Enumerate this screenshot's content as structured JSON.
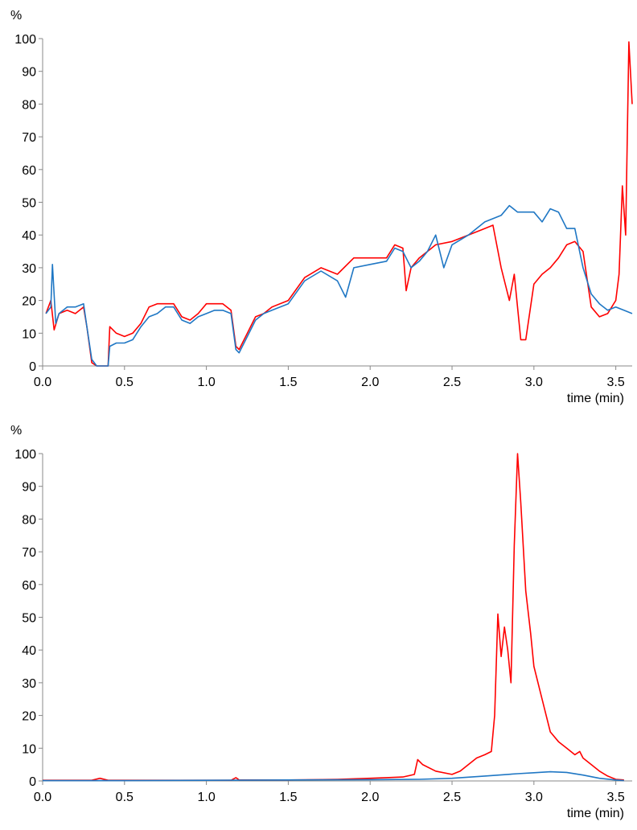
{
  "chart_data": [
    {
      "type": "line",
      "ylabel": "%",
      "xlabel": "time (min)",
      "xlim": [
        0,
        3.6
      ],
      "ylim": [
        0,
        100
      ],
      "x_ticks": [
        "0.0",
        "0.5",
        "1.0",
        "1.5",
        "2.0",
        "2.5",
        "3.0",
        "3.5"
      ],
      "y_ticks": [
        "0",
        "10",
        "20",
        "30",
        "40",
        "50",
        "60",
        "70",
        "80",
        "90",
        "100"
      ],
      "grid": false,
      "colors": [
        "#ff0000",
        "#1f77c4"
      ],
      "series": [
        {
          "points": [
            [
              0.02,
              16
            ],
            [
              0.05,
              20
            ],
            [
              0.07,
              11
            ],
            [
              0.1,
              16
            ],
            [
              0.15,
              17
            ],
            [
              0.2,
              16
            ],
            [
              0.25,
              18
            ],
            [
              0.27,
              12
            ],
            [
              0.3,
              1
            ],
            [
              0.33,
              0
            ],
            [
              0.4,
              0
            ],
            [
              0.41,
              12
            ],
            [
              0.45,
              10
            ],
            [
              0.5,
              9
            ],
            [
              0.55,
              10
            ],
            [
              0.6,
              13
            ],
            [
              0.65,
              18
            ],
            [
              0.7,
              19
            ],
            [
              0.75,
              19
            ],
            [
              0.8,
              19
            ],
            [
              0.85,
              15
            ],
            [
              0.9,
              14
            ],
            [
              0.95,
              16
            ],
            [
              1.0,
              19
            ],
            [
              1.05,
              19
            ],
            [
              1.1,
              19
            ],
            [
              1.15,
              17
            ],
            [
              1.18,
              6
            ],
            [
              1.2,
              5
            ],
            [
              1.25,
              10
            ],
            [
              1.3,
              15
            ],
            [
              1.35,
              16
            ],
            [
              1.4,
              18
            ],
            [
              1.5,
              20
            ],
            [
              1.6,
              27
            ],
            [
              1.7,
              30
            ],
            [
              1.8,
              28
            ],
            [
              1.9,
              33
            ],
            [
              2.0,
              33
            ],
            [
              2.1,
              33
            ],
            [
              2.15,
              37
            ],
            [
              2.2,
              36
            ],
            [
              2.22,
              23
            ],
            [
              2.25,
              30
            ],
            [
              2.3,
              33
            ],
            [
              2.35,
              35
            ],
            [
              2.4,
              37
            ],
            [
              2.5,
              38
            ],
            [
              2.6,
              40
            ],
            [
              2.7,
              42
            ],
            [
              2.75,
              43
            ],
            [
              2.8,
              30
            ],
            [
              2.85,
              20
            ],
            [
              2.88,
              28
            ],
            [
              2.92,
              8
            ],
            [
              2.95,
              8
            ],
            [
              3.0,
              25
            ],
            [
              3.05,
              28
            ],
            [
              3.1,
              30
            ],
            [
              3.15,
              33
            ],
            [
              3.2,
              37
            ],
            [
              3.25,
              38
            ],
            [
              3.3,
              35
            ],
            [
              3.35,
              18
            ],
            [
              3.4,
              15
            ],
            [
              3.45,
              16
            ],
            [
              3.5,
              20
            ],
            [
              3.52,
              28
            ],
            [
              3.54,
              55
            ],
            [
              3.56,
              40
            ],
            [
              3.58,
              99
            ],
            [
              3.6,
              80
            ]
          ]
        },
        {
          "points": [
            [
              0.02,
              16
            ],
            [
              0.05,
              18
            ],
            [
              0.06,
              31
            ],
            [
              0.08,
              13
            ],
            [
              0.1,
              16
            ],
            [
              0.15,
              18
            ],
            [
              0.2,
              18
            ],
            [
              0.25,
              19
            ],
            [
              0.27,
              12
            ],
            [
              0.3,
              2
            ],
            [
              0.33,
              0
            ],
            [
              0.4,
              0
            ],
            [
              0.41,
              6
            ],
            [
              0.45,
              7
            ],
            [
              0.5,
              7
            ],
            [
              0.55,
              8
            ],
            [
              0.6,
              12
            ],
            [
              0.65,
              15
            ],
            [
              0.7,
              16
            ],
            [
              0.75,
              18
            ],
            [
              0.8,
              18
            ],
            [
              0.85,
              14
            ],
            [
              0.9,
              13
            ],
            [
              0.95,
              15
            ],
            [
              1.0,
              16
            ],
            [
              1.05,
              17
            ],
            [
              1.1,
              17
            ],
            [
              1.15,
              16
            ],
            [
              1.18,
              5
            ],
            [
              1.2,
              4
            ],
            [
              1.25,
              9
            ],
            [
              1.3,
              14
            ],
            [
              1.35,
              16
            ],
            [
              1.4,
              17
            ],
            [
              1.5,
              19
            ],
            [
              1.6,
              26
            ],
            [
              1.7,
              29
            ],
            [
              1.8,
              26
            ],
            [
              1.85,
              21
            ],
            [
              1.9,
              30
            ],
            [
              2.0,
              31
            ],
            [
              2.1,
              32
            ],
            [
              2.15,
              36
            ],
            [
              2.2,
              35
            ],
            [
              2.25,
              30
            ],
            [
              2.3,
              32
            ],
            [
              2.35,
              35
            ],
            [
              2.4,
              40
            ],
            [
              2.45,
              30
            ],
            [
              2.5,
              37
            ],
            [
              2.6,
              40
            ],
            [
              2.7,
              44
            ],
            [
              2.8,
              46
            ],
            [
              2.85,
              49
            ],
            [
              2.9,
              47
            ],
            [
              3.0,
              47
            ],
            [
              3.05,
              44
            ],
            [
              3.1,
              48
            ],
            [
              3.15,
              47
            ],
            [
              3.2,
              42
            ],
            [
              3.25,
              42
            ],
            [
              3.3,
              30
            ],
            [
              3.35,
              22
            ],
            [
              3.4,
              19
            ],
            [
              3.45,
              17
            ],
            [
              3.5,
              18
            ],
            [
              3.55,
              17
            ],
            [
              3.6,
              16
            ]
          ]
        }
      ]
    },
    {
      "type": "line",
      "ylabel": "%",
      "xlabel": "time (min)",
      "xlim": [
        0,
        3.6
      ],
      "ylim": [
        0,
        100
      ],
      "x_ticks": [
        "0.0",
        "0.5",
        "1.0",
        "1.5",
        "2.0",
        "2.5",
        "3.0",
        "3.5"
      ],
      "y_ticks": [
        "0",
        "10",
        "20",
        "30",
        "40",
        "50",
        "60",
        "70",
        "80",
        "90",
        "100"
      ],
      "grid": false,
      "colors": [
        "#ff0000",
        "#1f77c4"
      ],
      "series": [
        {
          "points": [
            [
              0.0,
              0.2
            ],
            [
              0.3,
              0.2
            ],
            [
              0.35,
              0.8
            ],
            [
              0.4,
              0.2
            ],
            [
              1.15,
              0.2
            ],
            [
              1.18,
              1.0
            ],
            [
              1.2,
              0.3
            ],
            [
              1.5,
              0.3
            ],
            [
              1.8,
              0.5
            ],
            [
              2.0,
              0.8
            ],
            [
              2.1,
              1.0
            ],
            [
              2.2,
              1.2
            ],
            [
              2.27,
              2
            ],
            [
              2.29,
              6.5
            ],
            [
              2.32,
              5
            ],
            [
              2.4,
              3
            ],
            [
              2.5,
              2
            ],
            [
              2.55,
              3
            ],
            [
              2.6,
              5
            ],
            [
              2.65,
              7
            ],
            [
              2.7,
              8
            ],
            [
              2.74,
              9
            ],
            [
              2.76,
              20
            ],
            [
              2.78,
              51
            ],
            [
              2.8,
              38
            ],
            [
              2.82,
              47
            ],
            [
              2.84,
              40
            ],
            [
              2.86,
              30
            ],
            [
              2.88,
              72
            ],
            [
              2.9,
              100
            ],
            [
              2.92,
              85
            ],
            [
              2.95,
              58
            ],
            [
              2.98,
              45
            ],
            [
              3.0,
              35
            ],
            [
              3.05,
              25
            ],
            [
              3.1,
              15
            ],
            [
              3.15,
              12
            ],
            [
              3.2,
              10
            ],
            [
              3.25,
              8
            ],
            [
              3.28,
              9
            ],
            [
              3.3,
              7
            ],
            [
              3.35,
              5
            ],
            [
              3.4,
              3
            ],
            [
              3.45,
              1.5
            ],
            [
              3.5,
              0.5
            ],
            [
              3.55,
              0.3
            ]
          ]
        },
        {
          "points": [
            [
              0.0,
              0.1
            ],
            [
              0.5,
              0.1
            ],
            [
              1.0,
              0.2
            ],
            [
              1.5,
              0.3
            ],
            [
              2.0,
              0.4
            ],
            [
              2.3,
              0.5
            ],
            [
              2.5,
              0.8
            ],
            [
              2.7,
              1.5
            ],
            [
              2.9,
              2.2
            ],
            [
              3.0,
              2.5
            ],
            [
              3.1,
              2.8
            ],
            [
              3.2,
              2.6
            ],
            [
              3.3,
              1.8
            ],
            [
              3.4,
              0.8
            ],
            [
              3.5,
              0.3
            ],
            [
              3.55,
              0.1
            ]
          ]
        }
      ]
    }
  ]
}
